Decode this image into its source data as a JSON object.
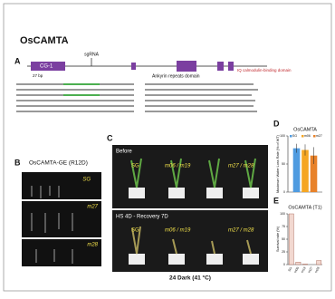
{
  "title": "OsCAMTA",
  "panel_a": {
    "label": "A",
    "domain_1": "CG-1",
    "guide": "sgRNA",
    "start": "27 bp",
    "ankyrin": "Ankyrin repeats domain",
    "iq": "IQ calmodulin-binding domain"
  },
  "panel_b": {
    "label": "B",
    "title": "OsCAMTA-GE (R12D)",
    "rows": [
      "SG",
      "m27",
      "m28"
    ]
  },
  "panel_c": {
    "label": "C",
    "top": "Before",
    "bottom": "HS 4D - Recovery 7D",
    "groups": [
      "SG",
      "m06 / m19",
      "m27 / m28"
    ],
    "caption": "24 Dark (41 °C)"
  },
  "panel_d": {
    "label": "D",
    "type": "bar",
    "title": "OsCAMTA",
    "y_label": "Maximum Water Loss Rate (% of WT)",
    "ylim": [
      0,
      100
    ],
    "yticks": [
      0,
      50,
      100
    ],
    "series": [
      {
        "name": "SG",
        "color": "#4f9be0",
        "values": [
          78
        ],
        "errors": [
          8
        ]
      },
      {
        "name": "m06",
        "color": "#f5a623",
        "values": [
          75
        ],
        "errors": [
          10
        ]
      },
      {
        "name": "m27",
        "color": "#e8822a",
        "values": [
          65
        ],
        "errors": [
          15
        ]
      }
    ]
  },
  "panel_e": {
    "label": "E",
    "type": "bar",
    "title": "OsCAMTA (T1)",
    "y_label": "Survival rate (%)",
    "categories": [
      "SG",
      "m06",
      "m19",
      "m27",
      "m28"
    ],
    "values": [
      100,
      5,
      1,
      0,
      8
    ],
    "color": "#f2d8d0",
    "ylim": [
      0,
      100
    ],
    "yticks": [
      0,
      25,
      50,
      75,
      100
    ]
  }
}
